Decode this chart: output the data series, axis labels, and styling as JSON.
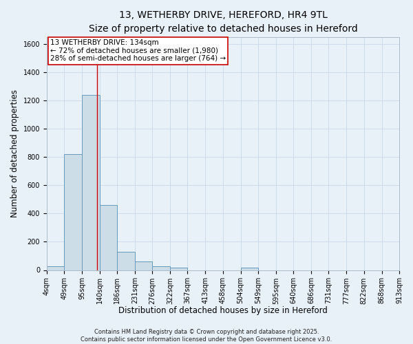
{
  "title_line1": "13, WETHERBY DRIVE, HEREFORD, HR4 9TL",
  "title_line2": "Size of property relative to detached houses in Hereford",
  "xlabel": "Distribution of detached houses by size in Hereford",
  "ylabel": "Number of detached properties",
  "bin_edges": [
    4,
    49,
    95,
    140,
    186,
    231,
    276,
    322,
    367,
    413,
    458,
    504,
    549,
    595,
    640,
    686,
    731,
    777,
    822,
    868,
    913
  ],
  "bar_heights": [
    25,
    820,
    1240,
    460,
    130,
    60,
    25,
    15,
    0,
    0,
    0,
    15,
    0,
    0,
    0,
    0,
    0,
    0,
    0,
    0
  ],
  "bar_color": "#ccdde8",
  "bar_edgecolor": "#6699bb",
  "bar_linewidth": 0.7,
  "grid_color": "#c8d8e8",
  "background_color": "#e8f0f8",
  "red_line_x": 134,
  "red_line_color": "#cc0000",
  "annotation_line1": "13 WETHERBY DRIVE: 134sqm",
  "annotation_line2": "← 72% of detached houses are smaller (1,980)",
  "annotation_line3": "28% of semi-detached houses are larger (764) →",
  "annotation_box_color": "white",
  "annotation_border_color": "#cc0000",
  "ylim": [
    0,
    1650
  ],
  "yticks": [
    0,
    200,
    400,
    600,
    800,
    1000,
    1200,
    1400,
    1600
  ],
  "footer_line1": "Contains HM Land Registry data © Crown copyright and database right 2025.",
  "footer_line2": "Contains public sector information licensed under the Open Government Licence v3.0.",
  "title_fontsize": 10,
  "axis_label_fontsize": 8.5,
  "tick_fontsize": 7,
  "annotation_fontsize": 7.5,
  "footer_fontsize": 6
}
